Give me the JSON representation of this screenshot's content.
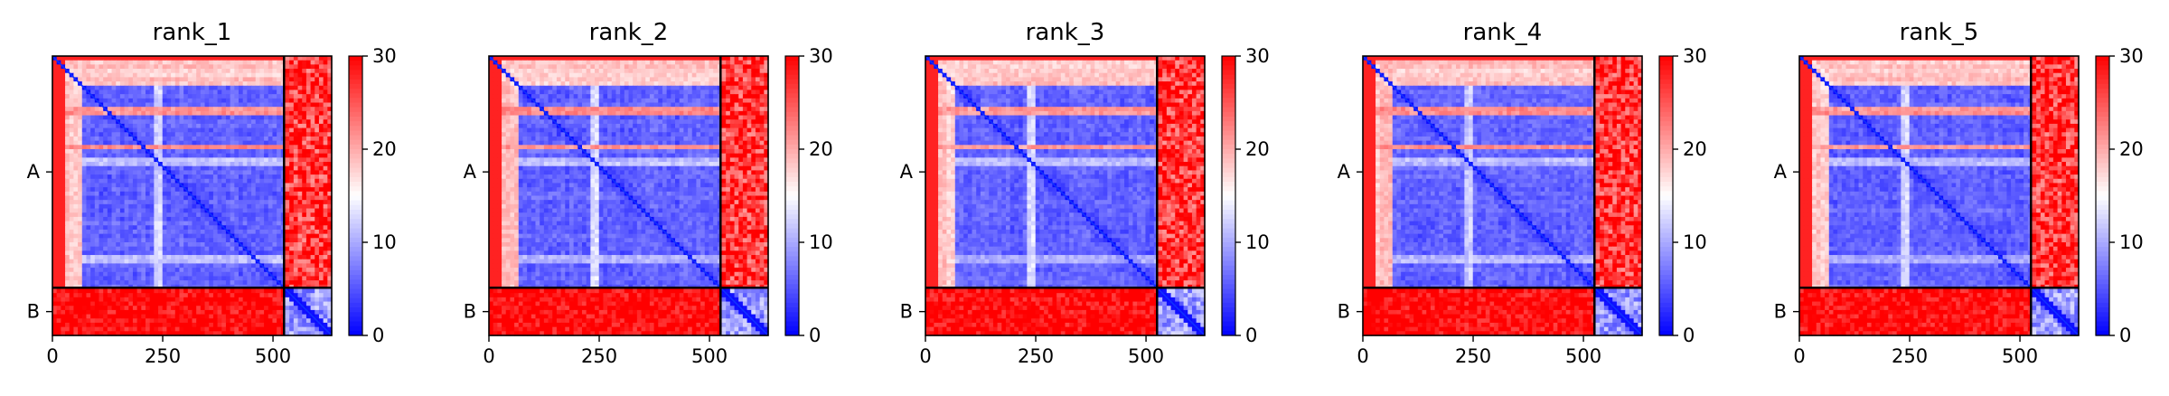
{
  "chart_data": [
    {
      "type": "heatmap",
      "title": "rank_1",
      "xlim": [
        0,
        633
      ],
      "ylim": [
        633,
        0
      ],
      "x_ticks": [
        0,
        250,
        500
      ],
      "chains": [
        {
          "label": "A",
          "start": 0,
          "end": 525
        },
        {
          "label": "B",
          "start": 525,
          "end": 633
        }
      ],
      "colorbar": {
        "min": 0,
        "max": 30,
        "ticks": [
          0,
          10,
          20,
          30
        ],
        "colormap": [
          "#0000ff",
          "#ffffff",
          "#ff0000"
        ]
      },
      "variant_seed": 11
    },
    {
      "type": "heatmap",
      "title": "rank_2",
      "xlim": [
        0,
        633
      ],
      "ylim": [
        633,
        0
      ],
      "x_ticks": [
        0,
        250,
        500
      ],
      "chains": [
        {
          "label": "A",
          "start": 0,
          "end": 525
        },
        {
          "label": "B",
          "start": 525,
          "end": 633
        }
      ],
      "colorbar": {
        "min": 0,
        "max": 30,
        "ticks": [
          0,
          10,
          20,
          30
        ],
        "colormap": [
          "#0000ff",
          "#ffffff",
          "#ff0000"
        ]
      },
      "variant_seed": 23
    },
    {
      "type": "heatmap",
      "title": "rank_3",
      "xlim": [
        0,
        633
      ],
      "ylim": [
        633,
        0
      ],
      "x_ticks": [
        0,
        250,
        500
      ],
      "chains": [
        {
          "label": "A",
          "start": 0,
          "end": 525
        },
        {
          "label": "B",
          "start": 525,
          "end": 633
        }
      ],
      "colorbar": {
        "min": 0,
        "max": 30,
        "ticks": [
          0,
          10,
          20,
          30
        ],
        "colormap": [
          "#0000ff",
          "#ffffff",
          "#ff0000"
        ]
      },
      "variant_seed": 37
    },
    {
      "type": "heatmap",
      "title": "rank_4",
      "xlim": [
        0,
        633
      ],
      "ylim": [
        633,
        0
      ],
      "x_ticks": [
        0,
        250,
        500
      ],
      "chains": [
        {
          "label": "A",
          "start": 0,
          "end": 525
        },
        {
          "label": "B",
          "start": 525,
          "end": 633
        }
      ],
      "colorbar": {
        "min": 0,
        "max": 30,
        "ticks": [
          0,
          10,
          20,
          30
        ],
        "colormap": [
          "#0000ff",
          "#ffffff",
          "#ff0000"
        ]
      },
      "variant_seed": 41
    },
    {
      "type": "heatmap",
      "title": "rank_5",
      "xlim": [
        0,
        633
      ],
      "ylim": [
        633,
        0
      ],
      "x_ticks": [
        0,
        250,
        500
      ],
      "chains": [
        {
          "label": "A",
          "start": 0,
          "end": 525
        },
        {
          "label": "B",
          "start": 525,
          "end": 633
        }
      ],
      "colorbar": {
        "min": 0,
        "max": 30,
        "ticks": [
          0,
          10,
          20,
          30
        ],
        "colormap": [
          "#0000ff",
          "#ffffff",
          "#ff0000"
        ]
      },
      "variant_seed": 53
    }
  ]
}
